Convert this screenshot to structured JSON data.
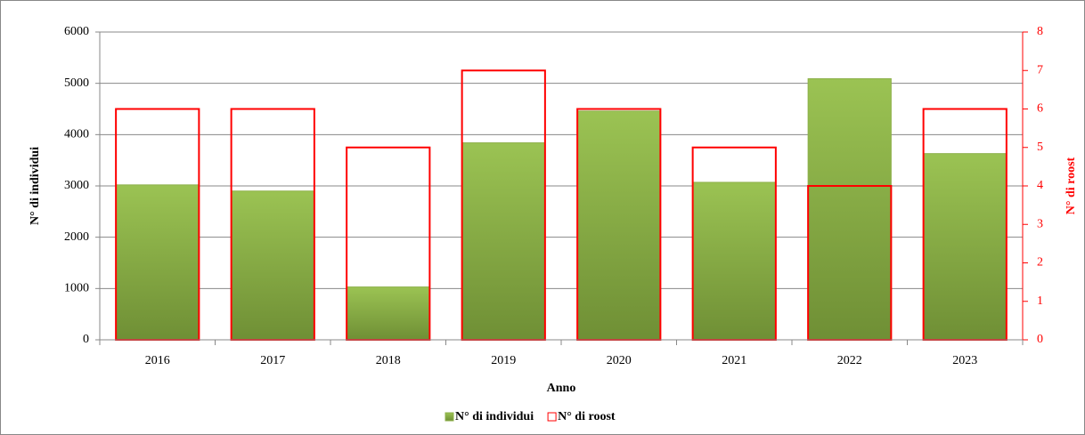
{
  "chart_data": {
    "type": "bar",
    "x_label": "Anno",
    "y_label": "N° di individui",
    "y2_label": "N° di roost",
    "categories": [
      "2016",
      "2017",
      "2018",
      "2019",
      "2020",
      "2021",
      "2022",
      "2023"
    ],
    "series": [
      {
        "name": "N° di individui",
        "color": "#8db04a",
        "values": [
          3020,
          2900,
          1030,
          3840,
          4460,
          3070,
          5090,
          3630
        ]
      },
      {
        "name": "N° di roost",
        "color": "#ff0000",
        "values": [
          6,
          6,
          5,
          7,
          6,
          5,
          4,
          6
        ],
        "axis": "y2",
        "outline": true
      }
    ],
    "ylim": [
      0,
      6000
    ],
    "yticks": [
      0,
      1000,
      2000,
      3000,
      4000,
      5000,
      6000
    ],
    "y2lim": [
      0,
      8
    ],
    "y2ticks": [
      0,
      1,
      2,
      3,
      4,
      5,
      6,
      7,
      8
    ],
    "grid": true,
    "legend": "bottom"
  }
}
